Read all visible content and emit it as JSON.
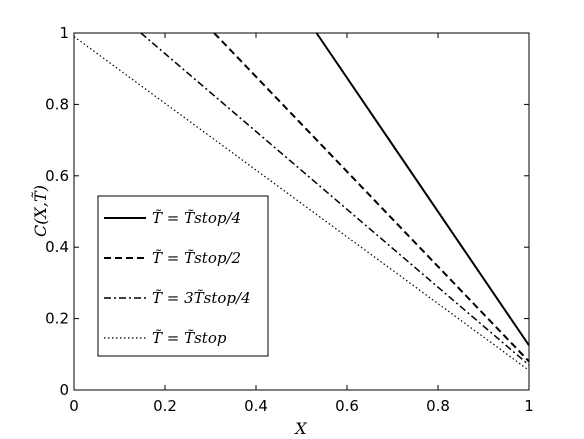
{
  "chart_data": {
    "type": "line",
    "xlabel": "X",
    "ylabel": "C(X,T̃)",
    "xlim": [
      0,
      1
    ],
    "ylim": [
      0,
      1
    ],
    "x_ticks": [
      "0",
      "0.2",
      "0.4",
      "0.6",
      "0.8",
      "1"
    ],
    "y_ticks": [
      "0",
      "0.2",
      "0.4",
      "0.6",
      "0.8",
      "1"
    ],
    "grid": false,
    "legend_position": "lower-left",
    "series": [
      {
        "name": "T̃ = T̃stop/4",
        "style": "solid",
        "x": [
          0.533,
          1
        ],
        "y": [
          1,
          0.125
        ]
      },
      {
        "name": "T̃ = T̃stop/2",
        "style": "dashed",
        "x": [
          0.308,
          1
        ],
        "y": [
          1,
          0.08
        ]
      },
      {
        "name": "T̃ = 3T̃stop/4",
        "style": "dash-dot",
        "x": [
          0.147,
          1
        ],
        "y": [
          1,
          0.07
        ]
      },
      {
        "name": "T̃ = T̃stop",
        "style": "dotted",
        "x": [
          0,
          1
        ],
        "y": [
          0.99,
          0.055
        ]
      }
    ]
  }
}
